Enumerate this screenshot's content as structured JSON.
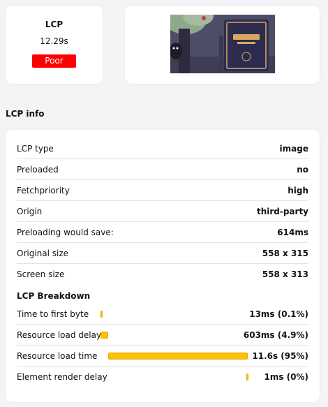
{
  "lcp_card": {
    "title": "LCP",
    "value": "12.29s",
    "rating": "Poor",
    "rating_color": "#ff0000"
  },
  "section_title": "LCP info",
  "info_rows": [
    {
      "label": "LCP type",
      "value": "image"
    },
    {
      "label": "Preloaded",
      "value": "no"
    },
    {
      "label": "Fetchpriority",
      "value": "high"
    },
    {
      "label": "Origin",
      "value": "third-party"
    },
    {
      "label": "Preloading would save:",
      "value": "614ms"
    },
    {
      "label": "Original size",
      "value": "558 x 315"
    },
    {
      "label": "Screen size",
      "value": "558 x 313"
    }
  ],
  "breakdown": {
    "title": "LCP Breakdown",
    "bar_color": "#ffc000",
    "total_ms": 12290,
    "items": [
      {
        "label": "Time to first byte",
        "value": "13ms (0.1%)",
        "start_ms": 0,
        "duration_ms": 13
      },
      {
        "label": "Resource load delay",
        "value": "603ms (4.9%)",
        "start_ms": 13,
        "duration_ms": 603
      },
      {
        "label": "Resource load time",
        "value": "11.6s (95%)",
        "start_ms": 616,
        "duration_ms": 11600
      },
      {
        "label": "Element render delay",
        "value": "1ms (0%)",
        "start_ms": 12216,
        "duration_ms": 1
      }
    ]
  }
}
